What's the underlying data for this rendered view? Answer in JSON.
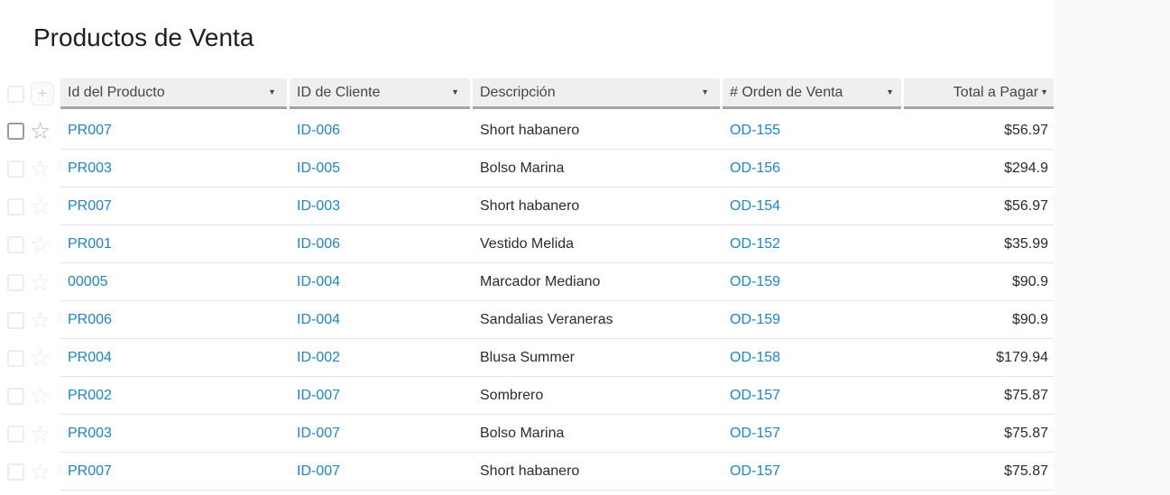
{
  "page": {
    "title": "Productos de Venta"
  },
  "icons": {
    "star": "☆",
    "sort_arrow": "▼",
    "plus": "+"
  },
  "colors": {
    "link_blue": "#1c86c8",
    "header_bg": "#f0efef",
    "header_border": "#a5a5a5",
    "row_separator": "#e4e4e4",
    "text": "#2b2b2b"
  },
  "table": {
    "columns": [
      {
        "label": "Id del Producto"
      },
      {
        "label": "ID de Cliente"
      },
      {
        "label": "Descripción"
      },
      {
        "label": "# Orden de Venta"
      },
      {
        "label": "Total a Pagar"
      }
    ],
    "rows": [
      {
        "producto_id": "PR007",
        "cliente_id": "ID-006",
        "descripcion": "Short habanero",
        "orden": "OD-155",
        "total": "$56.97"
      },
      {
        "producto_id": "PR003",
        "cliente_id": "ID-005",
        "descripcion": "Bolso Marina",
        "orden": "OD-156",
        "total": "$294.9"
      },
      {
        "producto_id": "PR007",
        "cliente_id": "ID-003",
        "descripcion": "Short habanero",
        "orden": "OD-154",
        "total": "$56.97"
      },
      {
        "producto_id": "PR001",
        "cliente_id": "ID-006",
        "descripcion": "Vestido Melida",
        "orden": "OD-152",
        "total": "$35.99"
      },
      {
        "producto_id": "00005",
        "cliente_id": "ID-004",
        "descripcion": "Marcador Mediano",
        "orden": "OD-159",
        "total": "$90.9"
      },
      {
        "producto_id": "PR006",
        "cliente_id": "ID-004",
        "descripcion": "Sandalias Veraneras",
        "orden": "OD-159",
        "total": "$90.9"
      },
      {
        "producto_id": "PR004",
        "cliente_id": "ID-002",
        "descripcion": "Blusa Summer",
        "orden": "OD-158",
        "total": "$179.94"
      },
      {
        "producto_id": "PR002",
        "cliente_id": "ID-007",
        "descripcion": "Sombrero",
        "orden": "OD-157",
        "total": "$75.87"
      },
      {
        "producto_id": "PR003",
        "cliente_id": "ID-007",
        "descripcion": "Bolso Marina",
        "orden": "OD-157",
        "total": "$75.87"
      },
      {
        "producto_id": "PR007",
        "cliente_id": "ID-007",
        "descripcion": "Short habanero",
        "orden": "OD-157",
        "total": "$75.87"
      }
    ]
  }
}
